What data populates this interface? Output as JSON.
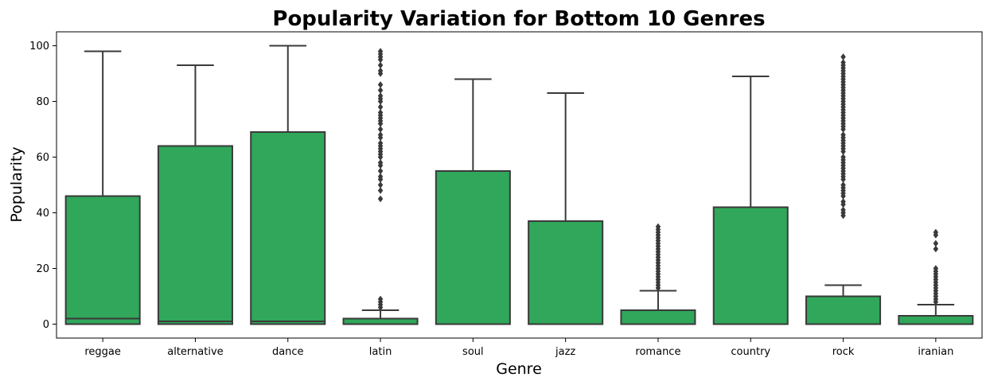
{
  "chart_data": {
    "type": "box",
    "title": "Popularity Variation for Bottom 10 Genres",
    "xlabel": "Genre",
    "ylabel": "Popularity",
    "ylim": [
      -5,
      105
    ],
    "yticks": [
      0,
      20,
      40,
      60,
      80,
      100
    ],
    "grid": false,
    "box_color": "#30a75a",
    "line_color": "#3a3a3a",
    "categories": [
      "reggae",
      "alternative",
      "dance",
      "latin",
      "soul",
      "jazz",
      "romance",
      "country",
      "rock",
      "iranian"
    ],
    "boxes": [
      {
        "q1": 0,
        "median": 2,
        "q3": 46,
        "whisker_low": 0,
        "whisker_high": 98,
        "outliers": []
      },
      {
        "q1": 0,
        "median": 1,
        "q3": 64,
        "whisker_low": 0,
        "whisker_high": 93,
        "outliers": []
      },
      {
        "q1": 0,
        "median": 1,
        "q3": 69,
        "whisker_low": 0,
        "whisker_high": 100,
        "outliers": []
      },
      {
        "q1": 0,
        "median": 0,
        "q3": 2,
        "whisker_low": 0,
        "whisker_high": 5,
        "outliers": [
          6,
          7,
          8,
          9,
          45,
          48,
          50,
          52,
          53,
          55,
          57,
          58,
          60,
          61,
          62,
          63,
          64,
          65,
          67,
          68,
          70,
          72,
          73,
          74,
          75,
          76,
          78,
          80,
          81,
          82,
          84,
          86,
          90,
          91,
          93,
          95,
          96,
          97,
          98
        ]
      },
      {
        "q1": 0,
        "median": 0,
        "q3": 55,
        "whisker_low": 0,
        "whisker_high": 88,
        "outliers": []
      },
      {
        "q1": 0,
        "median": 0,
        "q3": 37,
        "whisker_low": 0,
        "whisker_high": 83,
        "outliers": []
      },
      {
        "q1": 0,
        "median": 0,
        "q3": 5,
        "whisker_low": 0,
        "whisker_high": 12,
        "outliers": [
          13,
          14,
          15,
          16,
          17,
          18,
          19,
          20,
          21,
          22,
          23,
          24,
          25,
          26,
          27,
          28,
          29,
          30,
          31,
          32,
          33,
          34,
          35
        ]
      },
      {
        "q1": 0,
        "median": 0,
        "q3": 42,
        "whisker_low": 0,
        "whisker_high": 89,
        "outliers": []
      },
      {
        "q1": 0,
        "median": 0,
        "q3": 10,
        "whisker_low": 0,
        "whisker_high": 14,
        "outliers": [
          39,
          40,
          41,
          43,
          44,
          46,
          47,
          48,
          49,
          50,
          52,
          53,
          54,
          55,
          56,
          57,
          58,
          59,
          60,
          62,
          63,
          64,
          65,
          66,
          67,
          68,
          70,
          71,
          72,
          73,
          74,
          75,
          76,
          77,
          78,
          79,
          80,
          81,
          82,
          83,
          84,
          85,
          86,
          87,
          88,
          89,
          90,
          91,
          92,
          93,
          94,
          96
        ]
      },
      {
        "q1": 0,
        "median": 0,
        "q3": 3,
        "whisker_low": 0,
        "whisker_high": 7,
        "outliers": [
          8,
          9,
          10,
          11,
          12,
          13,
          14,
          15,
          16,
          17,
          18,
          19,
          20,
          27,
          29,
          32,
          33
        ]
      }
    ]
  }
}
